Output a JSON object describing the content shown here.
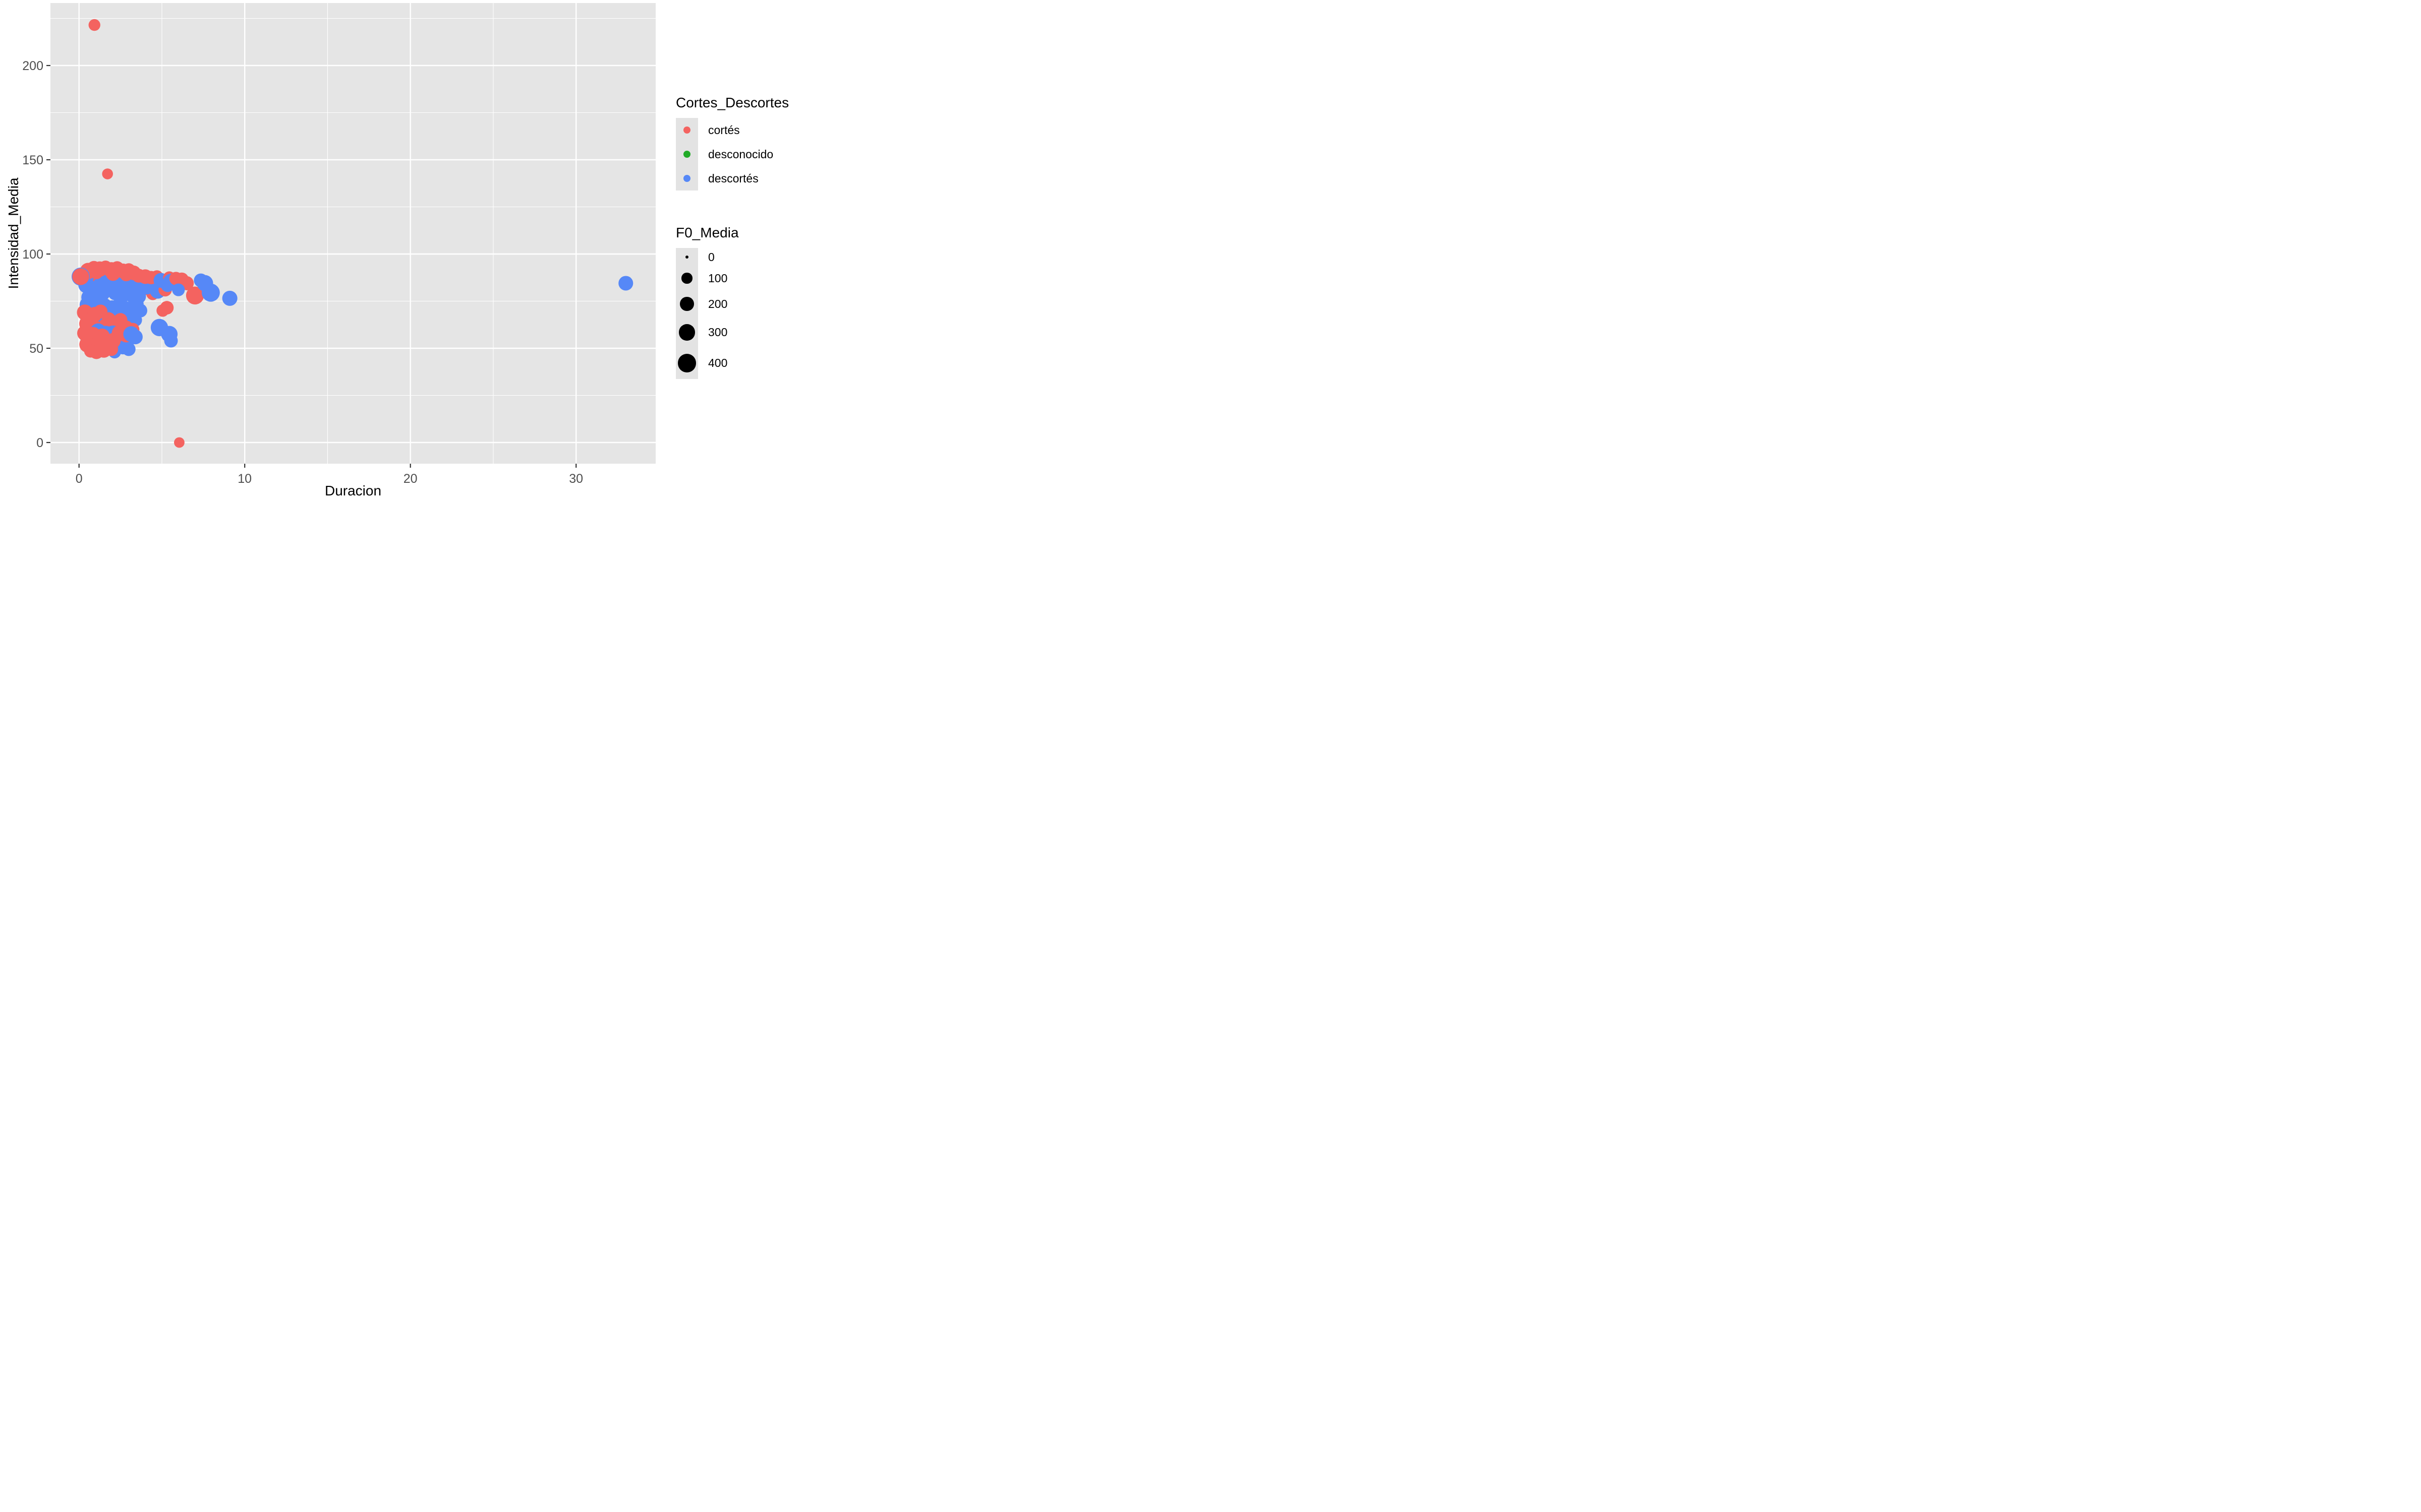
{
  "figure": {
    "background": "#FFFFFF",
    "panel_background": "#E5E5E5",
    "gridline_color": "#FFFFFF",
    "tick_mark_color": "#333333",
    "tick_label_color": "#4D4D4D"
  },
  "x_axis": {
    "title": "Duracion",
    "tick_labels": [
      "0",
      "10",
      "20",
      "30"
    ],
    "tick_values": [
      0,
      10,
      20,
      30
    ]
  },
  "y_axis": {
    "title": "Intensidad_Media",
    "tick_labels": [
      "0",
      "50",
      "100",
      "150",
      "200"
    ],
    "tick_values": [
      0,
      50,
      100,
      150,
      200
    ]
  },
  "legend_color": {
    "title": "Cortes_Descortes",
    "items": [
      {
        "label": "cortés",
        "color": "#F46360"
      },
      {
        "label": "desconocido",
        "color": "#21AB27"
      },
      {
        "label": "descortés",
        "color": "#5688F7"
      }
    ]
  },
  "legend_size": {
    "title": "F0_Media",
    "items": [
      {
        "label": "0",
        "f0": 0
      },
      {
        "label": "100",
        "f0": 100
      },
      {
        "label": "200",
        "f0": 200
      },
      {
        "label": "300",
        "f0": 300
      },
      {
        "label": "400",
        "f0": 400
      }
    ]
  },
  "chart_data": {
    "type": "scatter",
    "title": "",
    "xlabel": "Duracion",
    "ylabel": "Intensidad_Media",
    "xlim": [
      -1.7,
      34.8
    ],
    "ylim": [
      -11,
      233
    ],
    "x_major_gridlines": [
      0,
      10,
      20,
      30
    ],
    "x_minor_gridlines": [
      5,
      15,
      25
    ],
    "y_major_gridlines": [
      0,
      50,
      100,
      150,
      200
    ],
    "y_minor_gridlines": [
      25,
      75,
      125,
      175,
      225
    ],
    "grid": true,
    "legend_position": "right",
    "color_by": "Cortes_Descortes",
    "size_by": "F0_Media",
    "size_scale": {
      "domain": [
        0,
        400
      ],
      "legend_values": [
        0,
        100,
        200,
        300,
        400
      ]
    },
    "points": [
      {
        "x": 0.55,
        "y": 73,
        "f0": 340,
        "cat": "descortés"
      },
      {
        "x": 1.0,
        "y": 71,
        "f0": 310,
        "cat": "descortés"
      },
      {
        "x": 1.5,
        "y": 72,
        "f0": 360,
        "cat": "descortés"
      },
      {
        "x": 2.0,
        "y": 71,
        "f0": 320,
        "cat": "descortés"
      },
      {
        "x": 2.45,
        "y": 72.5,
        "f0": 280,
        "cat": "descortés"
      },
      {
        "x": 2.9,
        "y": 70.5,
        "f0": 300,
        "cat": "descortés"
      },
      {
        "x": 1.25,
        "y": 67,
        "f0": 290,
        "cat": "descortés"
      },
      {
        "x": 1.7,
        "y": 68,
        "f0": 320,
        "cat": "descortés"
      },
      {
        "x": 2.15,
        "y": 66.5,
        "f0": 300,
        "cat": "descortés"
      },
      {
        "x": 2.6,
        "y": 67.5,
        "f0": 260,
        "cat": "descortés"
      },
      {
        "x": 3.1,
        "y": 68.5,
        "f0": 280,
        "cat": "descortés"
      },
      {
        "x": 3.45,
        "y": 73.5,
        "f0": 240,
        "cat": "descortés"
      },
      {
        "x": 0.85,
        "y": 64.5,
        "f0": 260,
        "cat": "descortés"
      },
      {
        "x": 1.5,
        "y": 64,
        "f0": 300,
        "cat": "descortés"
      },
      {
        "x": 2.05,
        "y": 63.5,
        "f0": 250,
        "cat": "descortés"
      },
      {
        "x": 2.95,
        "y": 64,
        "f0": 220,
        "cat": "descortés"
      },
      {
        "x": 3.4,
        "y": 65,
        "f0": 180,
        "cat": "descortés"
      },
      {
        "x": 3.7,
        "y": 70,
        "f0": 200,
        "cat": "descortés"
      },
      {
        "x": 0.35,
        "y": 69,
        "f0": 280,
        "cat": "cortés"
      },
      {
        "x": 0.6,
        "y": 66.5,
        "f0": 230,
        "cat": "cortés"
      },
      {
        "x": 0.95,
        "y": 68,
        "f0": 240,
        "cat": "cortés"
      },
      {
        "x": 1.3,
        "y": 69.5,
        "f0": 200,
        "cat": "cortés"
      },
      {
        "x": 1.8,
        "y": 65.5,
        "f0": 190,
        "cat": "cortés"
      },
      {
        "x": 2.5,
        "y": 65,
        "f0": 200,
        "cat": "cortés"
      },
      {
        "x": 0.5,
        "y": 63,
        "f0": 300,
        "cat": "cortés"
      },
      {
        "x": 0.85,
        "y": 61.5,
        "f0": 250,
        "cat": "cortés"
      },
      {
        "x": 1.6,
        "y": 62,
        "f0": 220,
        "cat": "cortés"
      },
      {
        "x": 2.3,
        "y": 61.5,
        "f0": 190,
        "cat": "cortés"
      },
      {
        "x": 2.85,
        "y": 61,
        "f0": 200,
        "cat": "cortés"
      },
      {
        "x": 3.25,
        "y": 60,
        "f0": 170,
        "cat": "cortés"
      },
      {
        "x": 1.15,
        "y": 59,
        "f0": 280,
        "cat": "descortés"
      },
      {
        "x": 1.6,
        "y": 57.5,
        "f0": 320,
        "cat": "descortés"
      },
      {
        "x": 2.05,
        "y": 58,
        "f0": 260,
        "cat": "descortés"
      },
      {
        "x": 2.5,
        "y": 55.5,
        "f0": 300,
        "cat": "descortés"
      },
      {
        "x": 2.9,
        "y": 54,
        "f0": 250,
        "cat": "descortés"
      },
      {
        "x": 1.8,
        "y": 55,
        "f0": 280,
        "cat": "descortés"
      },
      {
        "x": 2.25,
        "y": 52,
        "f0": 250,
        "cat": "descortés"
      },
      {
        "x": 2.65,
        "y": 50.5,
        "f0": 210,
        "cat": "descortés"
      },
      {
        "x": 1.4,
        "y": 53.5,
        "f0": 210,
        "cat": "descortés"
      },
      {
        "x": 2.15,
        "y": 48,
        "f0": 160,
        "cat": "descortés"
      },
      {
        "x": 0.35,
        "y": 58,
        "f0": 260,
        "cat": "cortés"
      },
      {
        "x": 0.6,
        "y": 55.5,
        "f0": 300,
        "cat": "cortés"
      },
      {
        "x": 0.85,
        "y": 57.5,
        "f0": 220,
        "cat": "cortés"
      },
      {
        "x": 1.1,
        "y": 54.5,
        "f0": 260,
        "cat": "cortés"
      },
      {
        "x": 1.4,
        "y": 56.5,
        "f0": 240,
        "cat": "cortés"
      },
      {
        "x": 0.5,
        "y": 52,
        "f0": 290,
        "cat": "cortés"
      },
      {
        "x": 0.85,
        "y": 51,
        "f0": 240,
        "cat": "cortés"
      },
      {
        "x": 1.25,
        "y": 51.5,
        "f0": 300,
        "cat": "cortés"
      },
      {
        "x": 1.65,
        "y": 53,
        "f0": 230,
        "cat": "cortés"
      },
      {
        "x": 2.05,
        "y": 54,
        "f0": 260,
        "cat": "cortés"
      },
      {
        "x": 1.05,
        "y": 48,
        "f0": 210,
        "cat": "cortés"
      },
      {
        "x": 1.5,
        "y": 49,
        "f0": 250,
        "cat": "cortés"
      },
      {
        "x": 1.95,
        "y": 49.5,
        "f0": 190,
        "cat": "cortés"
      },
      {
        "x": 0.7,
        "y": 48.5,
        "f0": 170,
        "cat": "cortés"
      },
      {
        "x": 2.45,
        "y": 58,
        "f0": 280,
        "cat": "cortés"
      },
      {
        "x": 2.85,
        "y": 57,
        "f0": 230,
        "cat": "cortés"
      },
      {
        "x": 0.4,
        "y": 52.5,
        "f0": 25,
        "cat": "cortés"
      },
      {
        "x": 3.15,
        "y": 57.5,
        "f0": 280,
        "cat": "descortés"
      },
      {
        "x": 3.4,
        "y": 56,
        "f0": 230,
        "cat": "descortés"
      },
      {
        "x": 3.0,
        "y": 49.5,
        "f0": 190,
        "cat": "descortés"
      },
      {
        "x": 0.5,
        "y": 86,
        "f0": 210,
        "cat": "cortés"
      },
      {
        "x": 0.85,
        "y": 84.5,
        "f0": 250,
        "cat": "cortés"
      },
      {
        "x": 1.2,
        "y": 86,
        "f0": 180,
        "cat": "cortés"
      },
      {
        "x": 1.55,
        "y": 84,
        "f0": 230,
        "cat": "cortés"
      },
      {
        "x": 1.9,
        "y": 85.5,
        "f0": 160,
        "cat": "cortés"
      },
      {
        "x": 2.25,
        "y": 84,
        "f0": 260,
        "cat": "cortés"
      },
      {
        "x": 2.6,
        "y": 86,
        "f0": 200,
        "cat": "cortés"
      },
      {
        "x": 2.95,
        "y": 83.5,
        "f0": 190,
        "cat": "cortés"
      },
      {
        "x": 3.25,
        "y": 85.5,
        "f0": 150,
        "cat": "cortés"
      },
      {
        "x": 1.1,
        "y": 82.5,
        "f0": 210,
        "cat": "cortés"
      },
      {
        "x": 0.7,
        "y": 81,
        "f0": 260,
        "cat": "cortés"
      },
      {
        "x": 1.85,
        "y": 81.5,
        "f0": 190,
        "cat": "cortés"
      },
      {
        "x": 2.55,
        "y": 80.5,
        "f0": 160,
        "cat": "cortés"
      },
      {
        "x": 3.05,
        "y": 81,
        "f0": 220,
        "cat": "cortés"
      },
      {
        "x": 3.5,
        "y": 80,
        "f0": 180,
        "cat": "cortés"
      },
      {
        "x": 4.0,
        "y": 81.5,
        "f0": 150,
        "cat": "cortés"
      },
      {
        "x": 4.45,
        "y": 79,
        "f0": 170,
        "cat": "cortés"
      },
      {
        "x": 3.52,
        "y": 83.5,
        "f0": 260,
        "cat": "desconocido"
      },
      {
        "x": 0.45,
        "y": 83.5,
        "f0": 300,
        "cat": "descortés"
      },
      {
        "x": 0.9,
        "y": 81.5,
        "f0": 230,
        "cat": "descortés"
      },
      {
        "x": 1.3,
        "y": 83.5,
        "f0": 270,
        "cat": "descortés"
      },
      {
        "x": 1.7,
        "y": 82.5,
        "f0": 300,
        "cat": "descortés"
      },
      {
        "x": 2.1,
        "y": 83,
        "f0": 240,
        "cat": "descortés"
      },
      {
        "x": 2.5,
        "y": 82.5,
        "f0": 280,
        "cat": "descortés"
      },
      {
        "x": 2.9,
        "y": 83,
        "f0": 210,
        "cat": "descortés"
      },
      {
        "x": 3.3,
        "y": 82,
        "f0": 320,
        "cat": "descortés"
      },
      {
        "x": 3.7,
        "y": 83.5,
        "f0": 280,
        "cat": "descortés"
      },
      {
        "x": 4.1,
        "y": 82.5,
        "f0": 240,
        "cat": "descortés"
      },
      {
        "x": 2.2,
        "y": 79.5,
        "f0": 260,
        "cat": "descortés"
      },
      {
        "x": 2.65,
        "y": 78,
        "f0": 220,
        "cat": "descortés"
      },
      {
        "x": 3.15,
        "y": 78.5,
        "f0": 250,
        "cat": "descortés"
      },
      {
        "x": 3.6,
        "y": 77.5,
        "f0": 230,
        "cat": "descortés"
      },
      {
        "x": 1.45,
        "y": 79,
        "f0": 200,
        "cat": "descortés"
      },
      {
        "x": 1.0,
        "y": 78,
        "f0": 240,
        "cat": "descortés"
      },
      {
        "x": 0.6,
        "y": 77,
        "f0": 260,
        "cat": "descortés"
      },
      {
        "x": 4.75,
        "y": 80.5,
        "f0": 280,
        "cat": "descortés"
      },
      {
        "x": 4.55,
        "y": 84.5,
        "f0": 240,
        "cat": "descortés"
      },
      {
        "x": 4.2,
        "y": 86,
        "f0": 280,
        "cat": "descortés"
      },
      {
        "x": 0.95,
        "y": 91.5,
        "f0": 240,
        "cat": "descortés"
      },
      {
        "x": 1.35,
        "y": 90.5,
        "f0": 210,
        "cat": "descortés"
      },
      {
        "x": 1.75,
        "y": 91.5,
        "f0": 260,
        "cat": "descortés"
      },
      {
        "x": 2.4,
        "y": 90,
        "f0": 220,
        "cat": "descortés"
      },
      {
        "x": 2.75,
        "y": 90.5,
        "f0": 180,
        "cat": "descortés"
      },
      {
        "x": 3.1,
        "y": 89.5,
        "f0": 240,
        "cat": "descortés"
      },
      {
        "x": 3.45,
        "y": 88.5,
        "f0": 210,
        "cat": "descortés"
      },
      {
        "x": 0.65,
        "y": 89.5,
        "f0": 190,
        "cat": "descortés"
      },
      {
        "x": 1.55,
        "y": 89,
        "f0": 230,
        "cat": "descortés"
      },
      {
        "x": 3.8,
        "y": 87,
        "f0": 250,
        "cat": "descortés"
      },
      {
        "x": 0.55,
        "y": 91,
        "f0": 300,
        "cat": "cortés"
      },
      {
        "x": 0.9,
        "y": 92.5,
        "f0": 220,
        "cat": "cortés"
      },
      {
        "x": 1.25,
        "y": 92,
        "f0": 260,
        "cat": "cortés"
      },
      {
        "x": 1.6,
        "y": 93,
        "f0": 180,
        "cat": "cortés"
      },
      {
        "x": 1.95,
        "y": 91.5,
        "f0": 280,
        "cat": "cortés"
      },
      {
        "x": 2.3,
        "y": 92.5,
        "f0": 200,
        "cat": "cortés"
      },
      {
        "x": 2.65,
        "y": 91,
        "f0": 240,
        "cat": "cortés"
      },
      {
        "x": 3.0,
        "y": 91.5,
        "f0": 190,
        "cat": "cortés"
      },
      {
        "x": 3.3,
        "y": 90,
        "f0": 230,
        "cat": "cortés"
      },
      {
        "x": 1.05,
        "y": 90,
        "f0": 160,
        "cat": "cortés"
      },
      {
        "x": 2.05,
        "y": 89.5,
        "f0": 210,
        "cat": "cortés"
      },
      {
        "x": 2.85,
        "y": 89,
        "f0": 170,
        "cat": "cortés"
      },
      {
        "x": 3.6,
        "y": 88.5,
        "f0": 200,
        "cat": "cortés"
      },
      {
        "x": 4.0,
        "y": 88,
        "f0": 230,
        "cat": "cortés"
      },
      {
        "x": 4.35,
        "y": 87.5,
        "f0": 180,
        "cat": "cortés"
      },
      {
        "x": 4.7,
        "y": 88,
        "f0": 160,
        "cat": "cortés"
      },
      {
        "x": 0.1,
        "y": 88,
        "f0": 390,
        "cat": "descortés"
      },
      {
        "x": 0.1,
        "y": 88,
        "f0": 325,
        "cat": "cortés"
      },
      {
        "x": 5.2,
        "y": 81,
        "f0": 180,
        "cat": "cortés"
      },
      {
        "x": 5.35,
        "y": 83.5,
        "f0": 200,
        "cat": "descortés"
      },
      {
        "x": 4.95,
        "y": 86,
        "f0": 240,
        "cat": "descortés"
      },
      {
        "x": 5.45,
        "y": 87.5,
        "f0": 150,
        "cat": "cortés"
      },
      {
        "x": 5.55,
        "y": 85.5,
        "f0": 260,
        "cat": "descortés"
      },
      {
        "x": 5.85,
        "y": 87,
        "f0": 180,
        "cat": "cortés"
      },
      {
        "x": 6.2,
        "y": 86.5,
        "f0": 200,
        "cat": "cortés"
      },
      {
        "x": 6.5,
        "y": 84.5,
        "f0": 210,
        "cat": "cortés"
      },
      {
        "x": 6.0,
        "y": 81,
        "f0": 160,
        "cat": "descortés"
      },
      {
        "x": 7.0,
        "y": 78,
        "f0": 380,
        "cat": "cortés"
      },
      {
        "x": 7.35,
        "y": 86,
        "f0": 200,
        "cat": "descortés"
      },
      {
        "x": 7.6,
        "y": 84.5,
        "f0": 300,
        "cat": "descortés"
      },
      {
        "x": 7.95,
        "y": 79.5,
        "f0": 390,
        "cat": "descortés"
      },
      {
        "x": 9.1,
        "y": 76.5,
        "f0": 250,
        "cat": "descortés"
      },
      {
        "x": 5.3,
        "y": 71.5,
        "f0": 190,
        "cat": "cortés"
      },
      {
        "x": 5.05,
        "y": 70,
        "f0": 150,
        "cat": "cortés"
      },
      {
        "x": 4.85,
        "y": 61,
        "f0": 350,
        "cat": "descortés"
      },
      {
        "x": 5.45,
        "y": 57.5,
        "f0": 310,
        "cat": "descortés"
      },
      {
        "x": 5.55,
        "y": 54,
        "f0": 190,
        "cat": "descortés"
      },
      {
        "x": 0.93,
        "y": 221.5,
        "f0": 130,
        "cat": "cortés"
      },
      {
        "x": 1.72,
        "y": 142.5,
        "f0": 105,
        "cat": "cortés"
      },
      {
        "x": 6.05,
        "y": 0,
        "f0": 95,
        "cat": "cortés"
      },
      {
        "x": 33.0,
        "y": 84.5,
        "f0": 230,
        "cat": "descortés"
      }
    ]
  }
}
